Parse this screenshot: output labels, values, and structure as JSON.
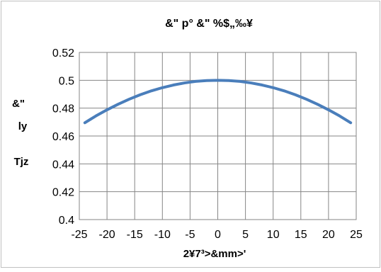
{
  "chart_data": {
    "type": "line",
    "title": "&\"  p°  &\" %$„‰¥",
    "xlabel": "2¥7³>&mm>'",
    "ylabel_lines": [
      "&\"",
      "ly",
      "Tjz"
    ],
    "xlim": [
      -25,
      25
    ],
    "ylim": [
      0.4,
      0.52
    ],
    "x_ticks": [
      -25,
      -20,
      -15,
      -10,
      -5,
      0,
      5,
      10,
      15,
      20,
      25
    ],
    "y_ticks": [
      0.4,
      0.42,
      0.44,
      0.46,
      0.48,
      0.5,
      0.52
    ],
    "x_tick_labels": [
      "-25",
      "-20",
      "-15",
      "-10",
      "-5",
      "0",
      "5",
      "10",
      "15",
      "20",
      "25"
    ],
    "y_tick_labels": [
      "0.4",
      "0.42",
      "0.44",
      "0.46",
      "0.48",
      "0.5",
      "0.52"
    ],
    "grid": true,
    "legend": "none",
    "colors": {
      "line": "#4a7ebb",
      "grid": "#868686",
      "frame": "#868686"
    },
    "series": [
      {
        "x": [
          -24,
          -22,
          -20,
          -18,
          -16,
          -14,
          -12,
          -10,
          -8,
          -6,
          -4,
          -2,
          0,
          2,
          4,
          6,
          8,
          10,
          12,
          14,
          16,
          18,
          20,
          22,
          24
        ],
        "y": [
          0.4695,
          0.4744,
          0.4788,
          0.4828,
          0.4864,
          0.4896,
          0.4924,
          0.4947,
          0.4966,
          0.4981,
          0.4992,
          0.4998,
          0.5,
          0.4998,
          0.4992,
          0.4981,
          0.4966,
          0.4947,
          0.4924,
          0.4896,
          0.4864,
          0.4828,
          0.4788,
          0.4744,
          0.4695
        ]
      }
    ]
  }
}
